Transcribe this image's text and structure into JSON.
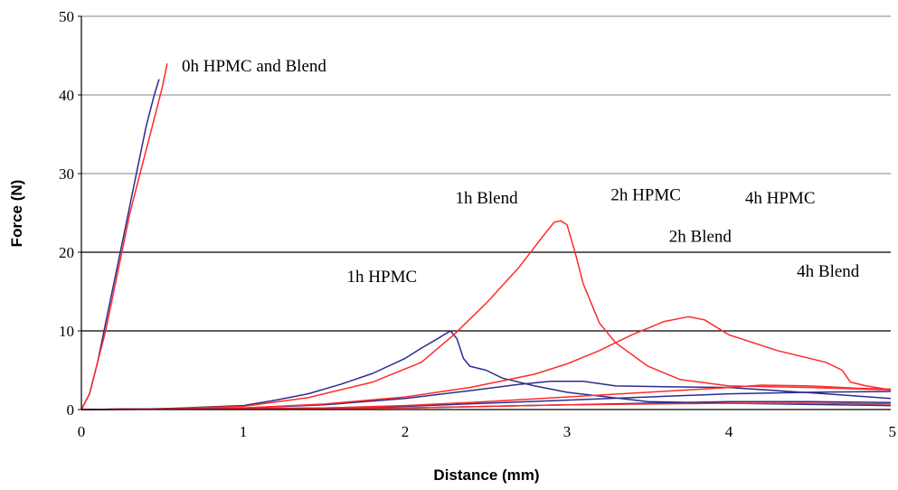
{
  "chart_data": {
    "type": "line",
    "title": "",
    "xlabel": "Distance (mm)",
    "ylabel": "Force (N)",
    "xlim": [
      0,
      5
    ],
    "ylim": [
      0,
      50
    ],
    "xticks": [
      "0",
      "1",
      "2",
      "3",
      "4",
      "5"
    ],
    "yticks": [
      "0",
      "10",
      "20",
      "30",
      "40",
      "50"
    ],
    "grid": "horizontal",
    "legend": "none",
    "colors": {
      "hpmc": "#2c2c8c",
      "blend": "#ff2a2a",
      "grid_upper": "#9a9a9a",
      "grid_lower": "#000000"
    },
    "series": [
      {
        "group": "hpmc",
        "x": [
          0,
          0.05,
          0.1,
          0.15,
          0.2,
          0.25,
          0.3,
          0.35,
          0.4,
          0.45,
          0.48
        ],
        "y": [
          0,
          2,
          6,
          11,
          16,
          21,
          26,
          31,
          36,
          40,
          42
        ]
      },
      {
        "group": "blend",
        "x": [
          0,
          0.05,
          0.1,
          0.15,
          0.2,
          0.25,
          0.3,
          0.35,
          0.4,
          0.45,
          0.5,
          0.53
        ],
        "y": [
          0,
          2,
          6,
          10,
          15,
          20,
          25,
          29,
          33,
          37,
          41,
          44
        ]
      },
      {
        "group": "hpmc",
        "x": [
          0,
          0.5,
          1.0,
          1.2,
          1.4,
          1.6,
          1.8,
          2.0,
          2.1,
          2.2,
          2.28,
          2.32,
          2.36,
          2.4,
          2.5,
          2.6,
          2.8,
          3.0,
          3.5,
          4.0,
          5.0
        ],
        "y": [
          0,
          0.1,
          0.5,
          1.2,
          2.0,
          3.2,
          4.6,
          6.5,
          7.8,
          9.0,
          10.0,
          9.0,
          6.5,
          5.5,
          5.0,
          4.0,
          3.0,
          2.2,
          1.0,
          0.8,
          0.5
        ]
      },
      {
        "group": "blend",
        "x": [
          0,
          0.5,
          1.0,
          1.4,
          1.8,
          2.1,
          2.3,
          2.5,
          2.7,
          2.85,
          2.92,
          2.96,
          3.0,
          3.05,
          3.1,
          3.2,
          3.3,
          3.5,
          3.7,
          4.0,
          4.5,
          5.0
        ],
        "y": [
          0,
          0.1,
          0.4,
          1.5,
          3.5,
          6.0,
          9.5,
          13.5,
          18.0,
          22.0,
          23.8,
          24.0,
          23.5,
          20.0,
          16.0,
          11.0,
          8.5,
          5.5,
          3.8,
          3.0,
          2.8,
          2.5
        ]
      },
      {
        "group": "hpmc",
        "x": [
          0,
          1.0,
          1.5,
          2.0,
          2.4,
          2.7,
          2.9,
          3.1,
          3.3,
          3.6,
          4.0,
          4.3,
          4.6,
          5.0
        ],
        "y": [
          0,
          0.2,
          0.6,
          1.4,
          2.4,
          3.2,
          3.6,
          3.6,
          3.0,
          2.9,
          2.8,
          2.4,
          2.0,
          1.4
        ]
      },
      {
        "group": "blend",
        "x": [
          0,
          1.0,
          1.5,
          2.0,
          2.4,
          2.8,
          3.0,
          3.2,
          3.4,
          3.6,
          3.75,
          3.85,
          4.0,
          4.3,
          4.6,
          4.7,
          4.75,
          4.85,
          5.0
        ],
        "y": [
          0,
          0.2,
          0.7,
          1.6,
          2.8,
          4.5,
          5.8,
          7.5,
          9.5,
          11.2,
          11.8,
          11.4,
          9.5,
          7.5,
          6.0,
          5.0,
          3.5,
          3.0,
          2.5
        ]
      },
      {
        "group": "hpmc",
        "x": [
          0,
          1.5,
          2.0,
          2.5,
          3.0,
          3.5,
          4.0,
          4.5,
          5.0
        ],
        "y": [
          0,
          0.2,
          0.4,
          0.8,
          1.2,
          1.6,
          2.0,
          2.2,
          2.3
        ]
      },
      {
        "group": "blend",
        "x": [
          0,
          1.5,
          2.0,
          2.5,
          3.0,
          3.5,
          4.0,
          4.2,
          4.5,
          4.8,
          5.0
        ],
        "y": [
          0,
          0.2,
          0.5,
          1.0,
          1.6,
          2.2,
          2.8,
          3.1,
          3.0,
          2.7,
          2.6
        ]
      },
      {
        "group": "hpmc",
        "x": [
          0,
          2.0,
          2.5,
          3.0,
          3.5,
          4.0,
          4.5,
          5.0
        ],
        "y": [
          0,
          0.2,
          0.4,
          0.6,
          0.8,
          1.0,
          1.0,
          0.9
        ]
      },
      {
        "group": "blend",
        "x": [
          0,
          2.0,
          2.5,
          3.0,
          3.5,
          4.0,
          4.5,
          5.0
        ],
        "y": [
          0,
          0.2,
          0.4,
          0.6,
          0.7,
          0.8,
          0.8,
          0.7
        ]
      }
    ],
    "annotations": [
      {
        "text": "0h HPMC and Blend",
        "x": 0.62,
        "y": 43
      },
      {
        "text": "1h Blend",
        "x": 2.31,
        "y": 26.2
      },
      {
        "text": "2h HPMC",
        "x": 3.27,
        "y": 26.6
      },
      {
        "text": "4h HPMC",
        "x": 4.1,
        "y": 26.2
      },
      {
        "text": "2h Blend",
        "x": 3.63,
        "y": 21.3
      },
      {
        "text": "1h HPMC",
        "x": 1.64,
        "y": 16.2
      },
      {
        "text": "4h Blend",
        "x": 4.42,
        "y": 16.9
      }
    ]
  }
}
